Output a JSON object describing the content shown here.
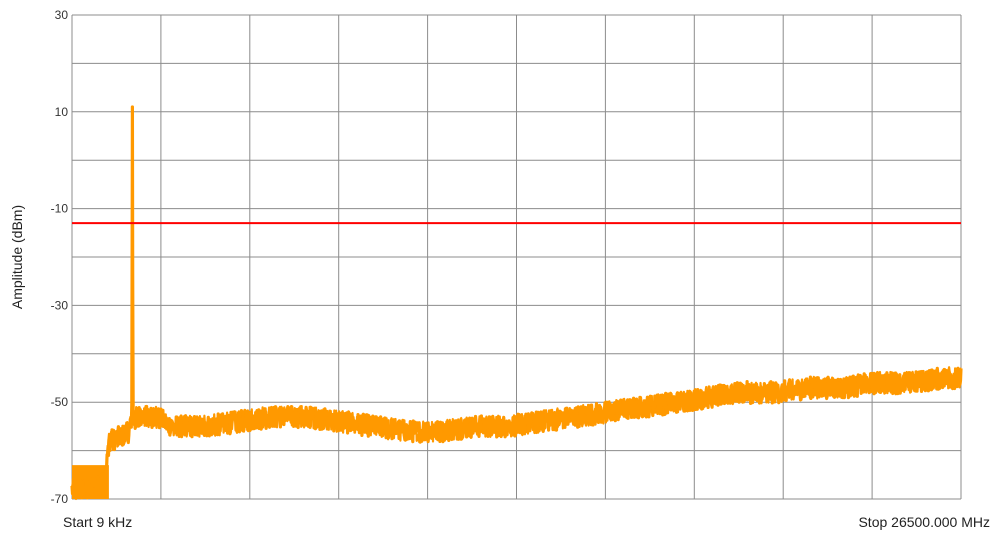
{
  "chart_data": {
    "type": "line",
    "title": "",
    "ylabel": "Amplitude (dBm)",
    "xlabel": "",
    "x_start_label": "Start 9 kHz",
    "x_stop_label": "Stop 26500.000 MHz",
    "x_range_mhz": [
      0.009,
      26500.0
    ],
    "ylim": [
      -70,
      30
    ],
    "y_ticks": [
      30,
      10,
      -10,
      -30,
      -50,
      -70
    ],
    "grid": true,
    "legend": "none",
    "series": [
      {
        "color": "#ff9900",
        "x": [
          0.009,
          400,
          800,
          1000,
          1100,
          1500,
          1700,
          1780,
          1800,
          1820,
          1900,
          2500,
          3000,
          4000,
          5000,
          6000,
          7000,
          8000,
          9000,
          10000,
          11000,
          12000,
          13000,
          14000,
          15000,
          16000,
          17000,
          18000,
          19000,
          20000,
          21000,
          22000,
          23000,
          24000,
          25000,
          26000,
          26500
        ],
        "values": [
          -68,
          -68,
          -67,
          -66,
          -58,
          -57,
          -56,
          -55,
          11,
          -54,
          -53,
          -53,
          -55,
          -55,
          -54,
          -53,
          -53,
          -54,
          -55,
          -56,
          -56,
          -55,
          -55,
          -54,
          -53,
          -52,
          -51,
          -50,
          -49,
          -48,
          -48,
          -47,
          -47,
          -46,
          -46,
          -45,
          -45
        ]
      },
      {
        "color": "#ff0000",
        "x": [
          0.009,
          26500
        ],
        "values": [
          -13,
          -13
        ]
      }
    ]
  }
}
